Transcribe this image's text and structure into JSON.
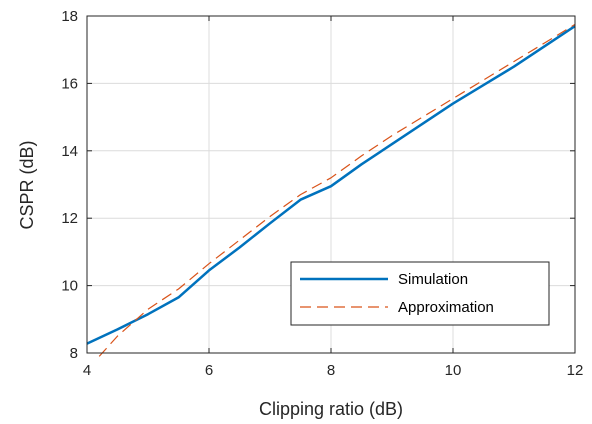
{
  "chart_data": {
    "type": "line",
    "xlabel": "Clipping ratio (dB)",
    "ylabel": "CSPR (dB)",
    "xlim": [
      4,
      12
    ],
    "ylim": [
      8,
      18
    ],
    "xticks": [
      4,
      6,
      8,
      10,
      12
    ],
    "yticks": [
      8,
      10,
      12,
      14,
      16,
      18
    ],
    "x_tick_labels": [
      "4",
      "6",
      "8",
      "10",
      "12"
    ],
    "y_tick_labels": [
      "8",
      "10",
      "12",
      "14",
      "16",
      "18"
    ],
    "grid": true,
    "legend_position": "bottom-right",
    "series": [
      {
        "name": "Simulation",
        "color": "#0072bd",
        "style": "solid",
        "x": [
          4,
          4.5,
          5,
          5.5,
          6,
          6.5,
          7,
          7.5,
          8,
          8.5,
          9,
          9.5,
          10,
          10.5,
          11,
          11.5,
          12
        ],
        "y": [
          8.28,
          8.7,
          9.15,
          9.65,
          10.45,
          11.13,
          11.85,
          12.55,
          12.95,
          13.6,
          14.2,
          14.8,
          15.4,
          15.95,
          16.5,
          17.1,
          17.7
        ]
      },
      {
        "name": "Approximation",
        "color": "#d95319",
        "style": "dashed",
        "x": [
          4.2,
          4.5,
          5,
          5.5,
          6,
          6.5,
          7,
          7.5,
          8,
          8.5,
          9,
          9.5,
          10,
          10.5,
          11,
          11.5,
          12
        ],
        "y": [
          7.9,
          8.5,
          9.3,
          9.9,
          10.65,
          11.35,
          12.05,
          12.7,
          13.2,
          13.85,
          14.45,
          15.0,
          15.55,
          16.1,
          16.65,
          17.2,
          17.75
        ]
      }
    ]
  }
}
